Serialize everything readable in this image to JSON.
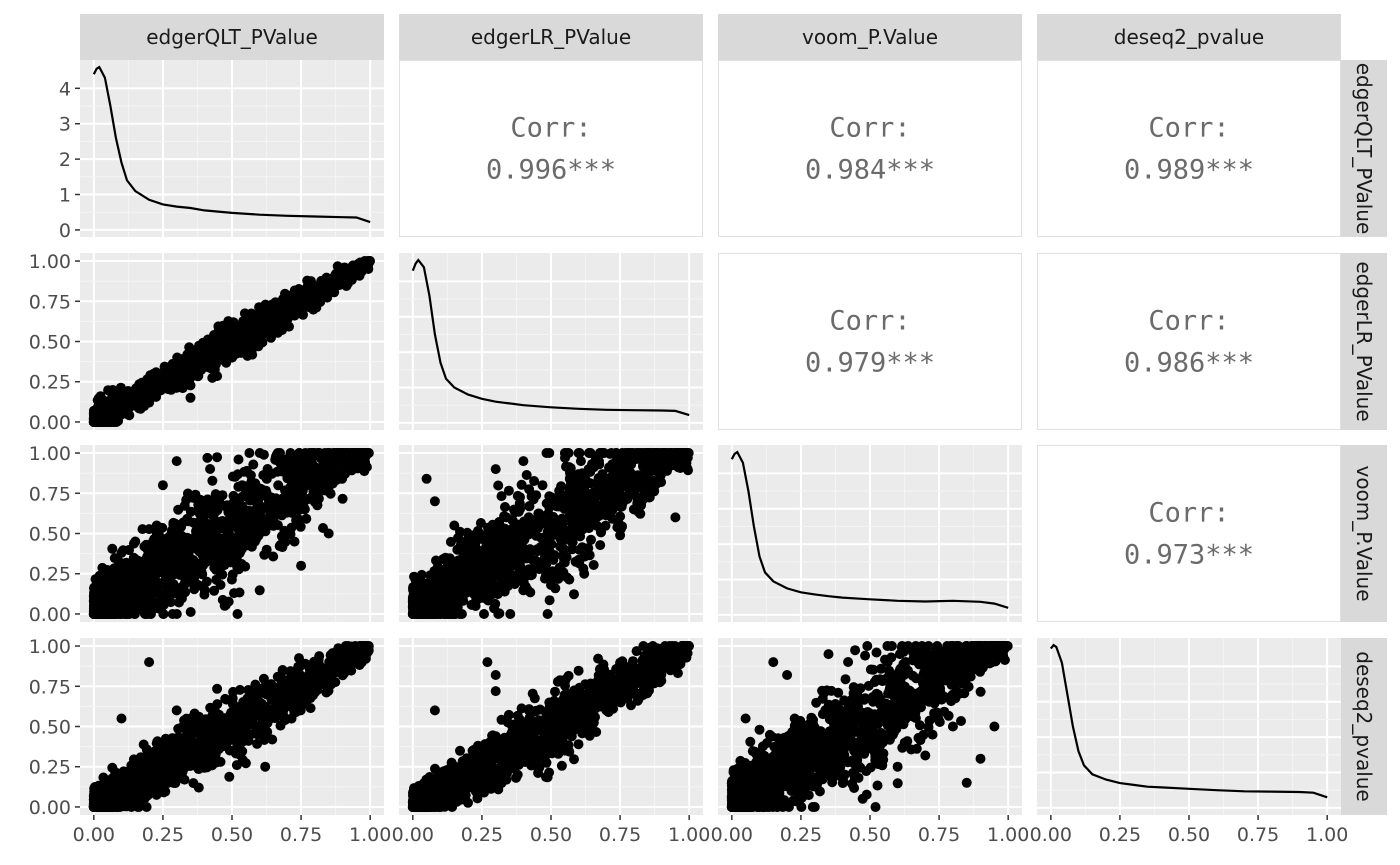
{
  "chart_data": {
    "type": "scatter-matrix",
    "variables": [
      "edgerQLT_PValue",
      "edgerLR_PValue",
      "voom_P.Value",
      "deseq2_pvalue"
    ],
    "row_strip_labels": [
      "edgerQLT_PValue",
      "edgerLR_PValue",
      "voom_P.Value",
      "deseq2_pvalue"
    ],
    "axis_range": [
      0,
      1
    ],
    "x_ticks": [
      "0.00",
      "0.25",
      "0.50",
      "0.75",
      "1.00"
    ],
    "y_ticks": [
      "0.00",
      "0.25",
      "0.50",
      "0.75",
      "1.00"
    ],
    "density_y_ticks": [
      "0",
      "1",
      "2",
      "3",
      "4"
    ],
    "density_ylim": [
      0,
      4.6
    ],
    "grid": true,
    "diagonal_density": [
      {
        "x": [
          0.0,
          0.01,
          0.02,
          0.04,
          0.06,
          0.08,
          0.1,
          0.12,
          0.15,
          0.2,
          0.25,
          0.3,
          0.35,
          0.4,
          0.5,
          0.6,
          0.7,
          0.8,
          0.9,
          0.95,
          1.0
        ],
        "y": [
          4.4,
          4.55,
          4.6,
          4.3,
          3.5,
          2.6,
          1.9,
          1.4,
          1.1,
          0.85,
          0.72,
          0.66,
          0.62,
          0.55,
          0.48,
          0.43,
          0.4,
          0.38,
          0.36,
          0.35,
          0.22
        ]
      },
      {
        "x": [
          0.0,
          0.01,
          0.02,
          0.04,
          0.06,
          0.08,
          0.1,
          0.12,
          0.15,
          0.2,
          0.25,
          0.3,
          0.35,
          0.4,
          0.5,
          0.6,
          0.7,
          0.8,
          0.9,
          0.95,
          1.0
        ],
        "y": [
          4.3,
          4.5,
          4.6,
          4.4,
          3.6,
          2.5,
          1.7,
          1.25,
          1.0,
          0.8,
          0.68,
          0.6,
          0.55,
          0.5,
          0.44,
          0.4,
          0.37,
          0.36,
          0.35,
          0.34,
          0.22
        ]
      },
      {
        "x": [
          0.0,
          0.01,
          0.02,
          0.04,
          0.06,
          0.08,
          0.1,
          0.12,
          0.15,
          0.2,
          0.25,
          0.3,
          0.35,
          0.4,
          0.5,
          0.6,
          0.7,
          0.8,
          0.9,
          0.95,
          1.0
        ],
        "y": [
          4.4,
          4.55,
          4.6,
          4.3,
          3.5,
          2.5,
          1.65,
          1.2,
          0.95,
          0.75,
          0.64,
          0.58,
          0.53,
          0.49,
          0.44,
          0.4,
          0.38,
          0.4,
          0.37,
          0.32,
          0.2
        ]
      },
      {
        "x": [
          0.0,
          0.01,
          0.02,
          0.04,
          0.06,
          0.08,
          0.1,
          0.12,
          0.15,
          0.2,
          0.25,
          0.3,
          0.35,
          0.4,
          0.5,
          0.6,
          0.7,
          0.8,
          0.9,
          0.95,
          1.0
        ],
        "y": [
          4.5,
          4.6,
          4.55,
          4.1,
          3.2,
          2.3,
          1.6,
          1.2,
          0.95,
          0.8,
          0.7,
          0.65,
          0.6,
          0.58,
          0.54,
          0.5,
          0.47,
          0.46,
          0.45,
          0.43,
          0.3
        ]
      }
    ],
    "correlations": [
      {
        "row": 0,
        "col": 1,
        "label": "Corr:",
        "value": "0.996***"
      },
      {
        "row": 0,
        "col": 2,
        "label": "Corr:",
        "value": "0.984***"
      },
      {
        "row": 0,
        "col": 3,
        "label": "Corr:",
        "value": "0.989***"
      },
      {
        "row": 1,
        "col": 2,
        "label": "Corr:",
        "value": "0.979***"
      },
      {
        "row": 1,
        "col": 3,
        "label": "Corr:",
        "value": "0.986***"
      },
      {
        "row": 2,
        "col": 3,
        "label": "Corr:",
        "value": "0.973***"
      }
    ],
    "scatter_panels": [
      {
        "row": 1,
        "col": 0,
        "x_var": "edgerQLT_PValue",
        "y_var": "edgerLR_PValue",
        "pattern": "tight_diagonal",
        "outliers": [
          [
            0.3,
            0.29
          ],
          [
            0.25,
            0.26
          ],
          [
            0.28,
            0.2
          ],
          [
            0.35,
            0.15
          ],
          [
            0.2,
            0.12
          ]
        ]
      },
      {
        "row": 2,
        "col": 0,
        "x_var": "edgerQLT_PValue",
        "y_var": "voom_P.Value",
        "pattern": "wide_band",
        "outliers": [
          [
            0.1,
            0.38
          ],
          [
            0.15,
            0.45
          ],
          [
            0.47,
            0.38
          ],
          [
            0.5,
            0.35
          ],
          [
            0.35,
            0.2
          ],
          [
            0.6,
            0.5
          ],
          [
            0.4,
            0.12
          ],
          [
            0.75,
            0.3
          ],
          [
            0.85,
            0.5
          ],
          [
            0.3,
            0.95
          ],
          [
            0.25,
            0.8
          ]
        ]
      },
      {
        "row": 3,
        "col": 0,
        "x_var": "edgerQLT_PValue",
        "y_var": "deseq2_pvalue",
        "pattern": "medium_diagonal",
        "outliers": [
          [
            0.2,
            0.9
          ],
          [
            0.1,
            0.55
          ],
          [
            0.4,
            0.25
          ],
          [
            0.62,
            0.25
          ],
          [
            0.38,
            0.12
          ],
          [
            0.55,
            0.62
          ],
          [
            0.3,
            0.6
          ]
        ]
      },
      {
        "row": 2,
        "col": 1,
        "x_var": "edgerLR_PValue",
        "y_var": "voom_P.Value",
        "pattern": "wide_band",
        "outliers": [
          [
            0.05,
            0.84
          ],
          [
            0.08,
            0.7
          ],
          [
            0.4,
            0.95
          ],
          [
            0.3,
            0.9
          ],
          [
            0.45,
            0.3
          ],
          [
            0.55,
            0.32
          ],
          [
            0.5,
            0.18
          ],
          [
            0.62,
            0.25
          ],
          [
            0.8,
            0.65
          ],
          [
            0.95,
            0.6
          ],
          [
            0.15,
            0.55
          ]
        ]
      },
      {
        "row": 3,
        "col": 1,
        "x_var": "edgerLR_PValue",
        "y_var": "deseq2_pvalue",
        "pattern": "medium_diagonal",
        "outliers": [
          [
            0.27,
            0.9
          ],
          [
            0.3,
            0.82
          ],
          [
            0.08,
            0.6
          ],
          [
            0.3,
            0.72
          ],
          [
            0.45,
            0.25
          ],
          [
            0.55,
            0.35
          ],
          [
            0.42,
            0.6
          ],
          [
            0.6,
            0.7
          ]
        ]
      },
      {
        "row": 3,
        "col": 2,
        "x_var": "voom_P.Value",
        "y_var": "deseq2_pvalue",
        "pattern": "wide_band",
        "outliers": [
          [
            0.15,
            0.9
          ],
          [
            0.05,
            0.55
          ],
          [
            0.1,
            0.48
          ],
          [
            0.2,
            0.82
          ],
          [
            0.35,
            0.95
          ],
          [
            0.7,
            0.32
          ],
          [
            0.85,
            0.15
          ],
          [
            0.9,
            0.3
          ],
          [
            0.95,
            0.5
          ],
          [
            0.8,
            0.5
          ],
          [
            0.6,
            0.25
          ]
        ]
      }
    ]
  }
}
